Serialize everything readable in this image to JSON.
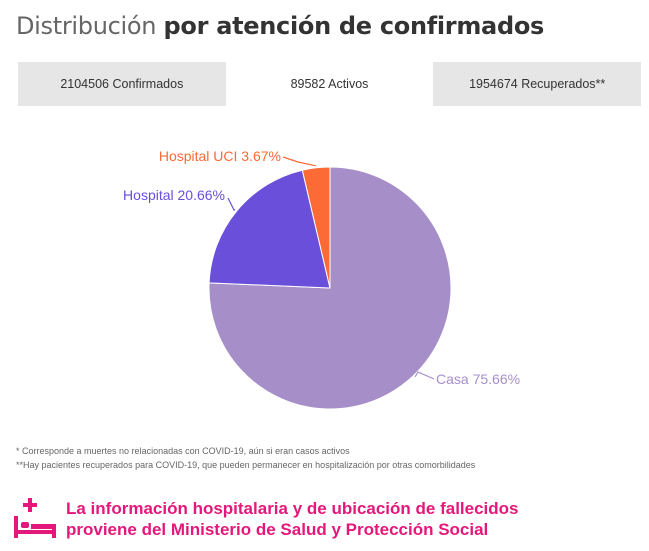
{
  "title": {
    "prefix": "Distribución",
    "bold": "por atención de confirmados"
  },
  "tabs": [
    {
      "label": "2104506 Confirmados",
      "active": false
    },
    {
      "label": "89582 Activos",
      "active": true
    },
    {
      "label": "1954674 Recuperados**",
      "active": false
    }
  ],
  "chart_data": {
    "type": "pie",
    "title": "",
    "slices": [
      {
        "label": "Casa 75.66%",
        "name": "Casa",
        "value": 75.66,
        "color": "#a68fc9"
      },
      {
        "label": "Hospital 20.66%",
        "name": "Hospital",
        "value": 20.66,
        "color": "#6a4fdb"
      },
      {
        "label": "Hospital UCI 3.67%",
        "name": "Hospital UCI",
        "value": 3.67,
        "color": "#fc6a35"
      }
    ]
  },
  "notes": [
    "* Corresponde a muertes no relacionadas con COVID-19, aún si eran casos activos",
    "**Hay pacientes recuperados para COVID-19, que pueden permanecer en hospitalización por otras comorbilidades"
  ],
  "footer": {
    "line1": "La información hospitalaria y de ubicación de fallecidos",
    "line2": "proviene del Ministerio de Salud y Protección Social",
    "icon": "hospital-bed-icon",
    "color": "#e4187a"
  }
}
